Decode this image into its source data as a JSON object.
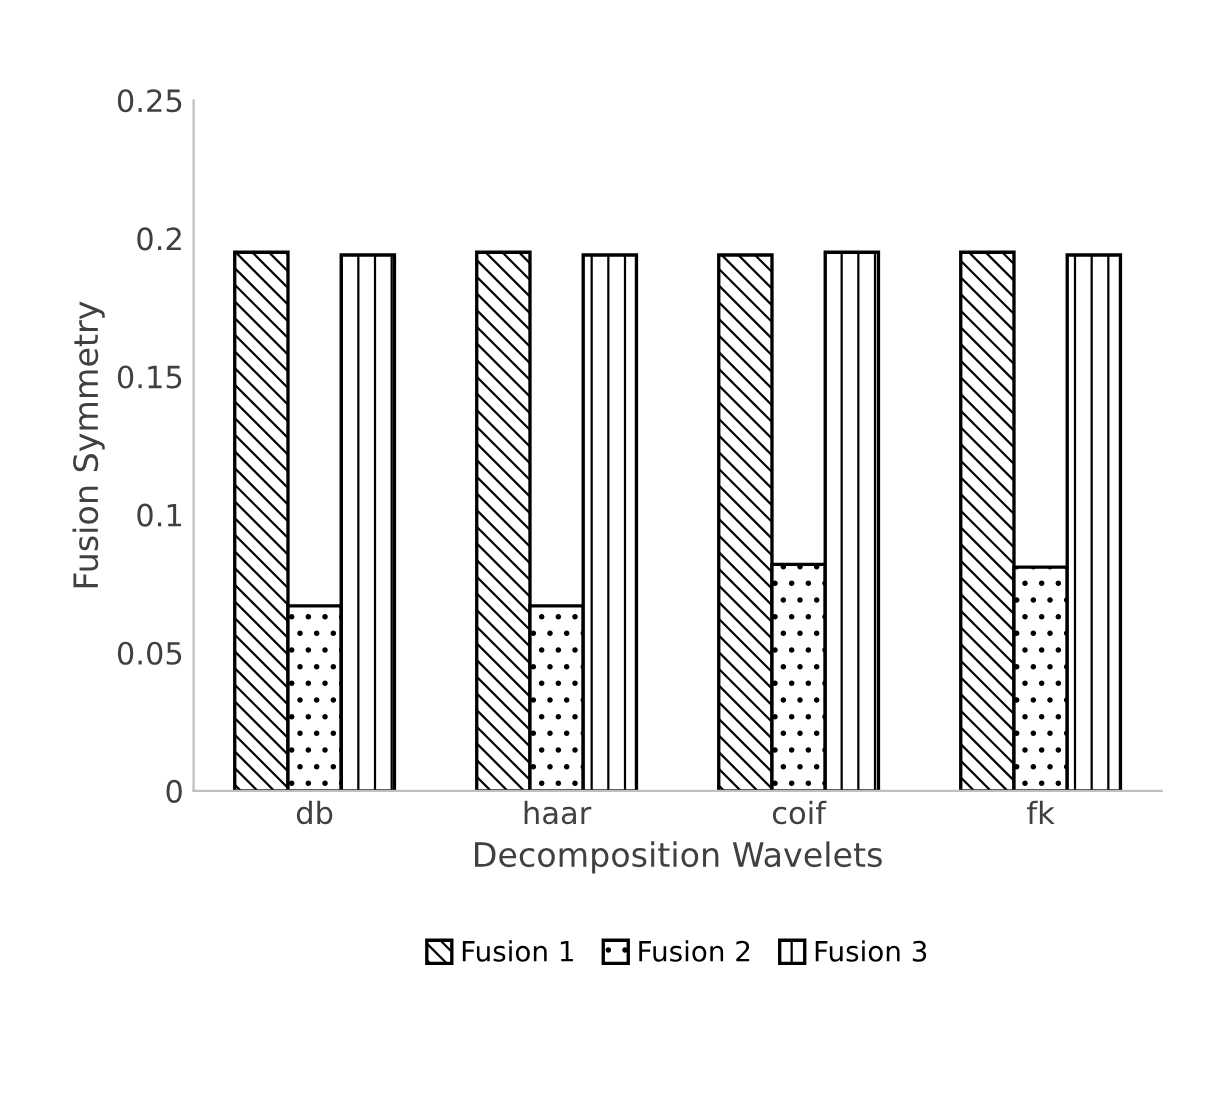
{
  "chart_data": {
    "type": "bar",
    "xlabel": "Decomposition Wavelets",
    "ylabel": "Fusion Symmetry",
    "categories": [
      "db",
      "haar",
      "coif",
      "fk"
    ],
    "series": [
      {
        "name": "Fusion 1",
        "color": "#000000",
        "values": [
          0.195,
          0.195,
          0.194,
          0.195
        ]
      },
      {
        "name": "Fusion 2",
        "color": "#000000",
        "values": [
          0.067,
          0.067,
          0.082,
          0.081
        ]
      },
      {
        "name": "Fusion 3",
        "color": "#000000",
        "values": [
          0.194,
          0.194,
          0.195,
          0.194
        ]
      }
    ],
    "ylim": [
      0,
      0.25
    ],
    "yticks": [
      0,
      0.05,
      0.1,
      0.15,
      0.2,
      0.25
    ],
    "grid": false,
    "legend": "bottom"
  }
}
